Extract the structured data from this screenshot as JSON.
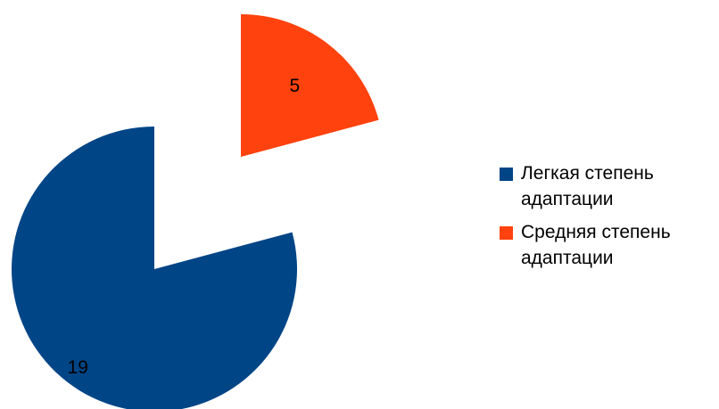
{
  "chart_data": {
    "type": "pie",
    "exploded": true,
    "start_angle_deg": 0,
    "direction": "clockwise",
    "slices": [
      {
        "label": "Легкая степень адаптации",
        "value": 19,
        "color": "#004586"
      },
      {
        "label": "Средняя степень адаптации",
        "value": 5,
        "color": "#ff420e"
      }
    ],
    "data_labels": [
      "19",
      "5"
    ],
    "legend": {
      "position": "right",
      "entries": [
        "Легкая степень адаптации",
        "Средняя степень адаптации"
      ]
    }
  }
}
